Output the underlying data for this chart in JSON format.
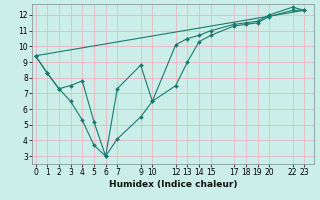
{
  "xlabel": "Humidex (Indice chaleur)",
  "bg_color": "#cceee8",
  "grid_color": "#e8b8c0",
  "line_color": "#1a7a6e",
  "line1_x": [
    0,
    1,
    2,
    3,
    4,
    5,
    6,
    7,
    9,
    10,
    12,
    13,
    14,
    15,
    17,
    18,
    19,
    20,
    22,
    23
  ],
  "line1_y": [
    9.4,
    8.3,
    7.3,
    6.5,
    5.3,
    3.7,
    3.0,
    4.1,
    5.5,
    6.5,
    7.5,
    9.0,
    10.3,
    10.7,
    11.3,
    11.4,
    11.5,
    11.9,
    12.3,
    12.3
  ],
  "line2_x": [
    0,
    1,
    2,
    3,
    4,
    5,
    6,
    7,
    9,
    10,
    12,
    13,
    14,
    15,
    17,
    18,
    19,
    20,
    22,
    23
  ],
  "line2_y": [
    9.4,
    8.3,
    7.3,
    7.5,
    7.8,
    5.2,
    3.0,
    7.3,
    8.8,
    6.5,
    10.1,
    10.5,
    10.7,
    11.0,
    11.4,
    11.5,
    11.6,
    12.0,
    12.5,
    12.3
  ],
  "line3_x": [
    0,
    23
  ],
  "line3_y": [
    9.4,
    12.3
  ],
  "xticks": [
    0,
    1,
    2,
    3,
    4,
    5,
    6,
    7,
    9,
    10,
    12,
    13,
    14,
    15,
    17,
    18,
    19,
    20,
    22,
    23
  ],
  "yticks": [
    3,
    4,
    5,
    6,
    7,
    8,
    9,
    10,
    11,
    12
  ],
  "xlim": [
    -0.3,
    23.8
  ],
  "ylim": [
    2.5,
    12.7
  ],
  "markersize": 2.0,
  "linewidth": 0.8,
  "tick_fontsize": 5.5,
  "xlabel_fontsize": 6.5
}
